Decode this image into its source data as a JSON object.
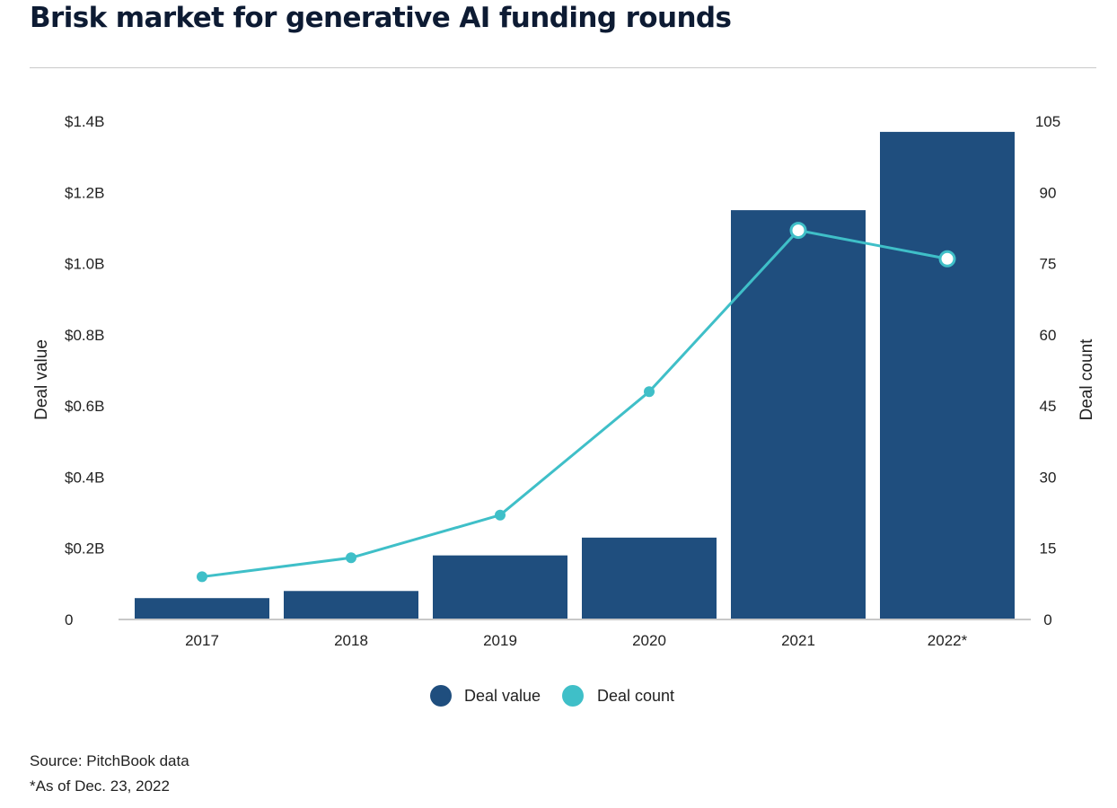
{
  "title": "Brisk market for generative AI funding rounds",
  "chart_data": {
    "type": "bar",
    "categories": [
      "2017",
      "2018",
      "2019",
      "2020",
      "2021",
      "2022*"
    ],
    "series": [
      {
        "name": "Deal value",
        "type": "bar",
        "axis": "left",
        "color": "#1f4e7e",
        "values": [
          0.06,
          0.08,
          0.18,
          0.23,
          1.15,
          1.37
        ]
      },
      {
        "name": "Deal count",
        "type": "line",
        "axis": "right",
        "color": "#3fbfc8",
        "values": [
          9,
          13,
          22,
          48,
          82,
          76
        ]
      }
    ],
    "y_left": {
      "label": "Deal value",
      "range": [
        0,
        1.4
      ],
      "ticks": [
        0,
        0.2,
        0.4,
        0.6,
        0.8,
        1.0,
        1.2,
        1.4
      ],
      "tick_labels": [
        "0",
        "$0.2B",
        "$0.4B",
        "$0.6B",
        "$0.8B",
        "$1.0B",
        "$1.2B",
        "$1.4B"
      ]
    },
    "y_right": {
      "label": "Deal count",
      "range": [
        0,
        105
      ],
      "ticks": [
        0,
        15,
        30,
        45,
        60,
        75,
        90,
        105
      ],
      "tick_labels": [
        "0",
        "15",
        "30",
        "45",
        "60",
        "75",
        "90",
        "105"
      ]
    },
    "grid": false,
    "legend_position": "bottom-center"
  },
  "legend": [
    {
      "label": "Deal value",
      "color": "#1f4e7e"
    },
    {
      "label": "Deal count",
      "color": "#3fbfc8"
    }
  ],
  "source": "Source: PitchBook data",
  "note": "*As of Dec. 23, 2022"
}
